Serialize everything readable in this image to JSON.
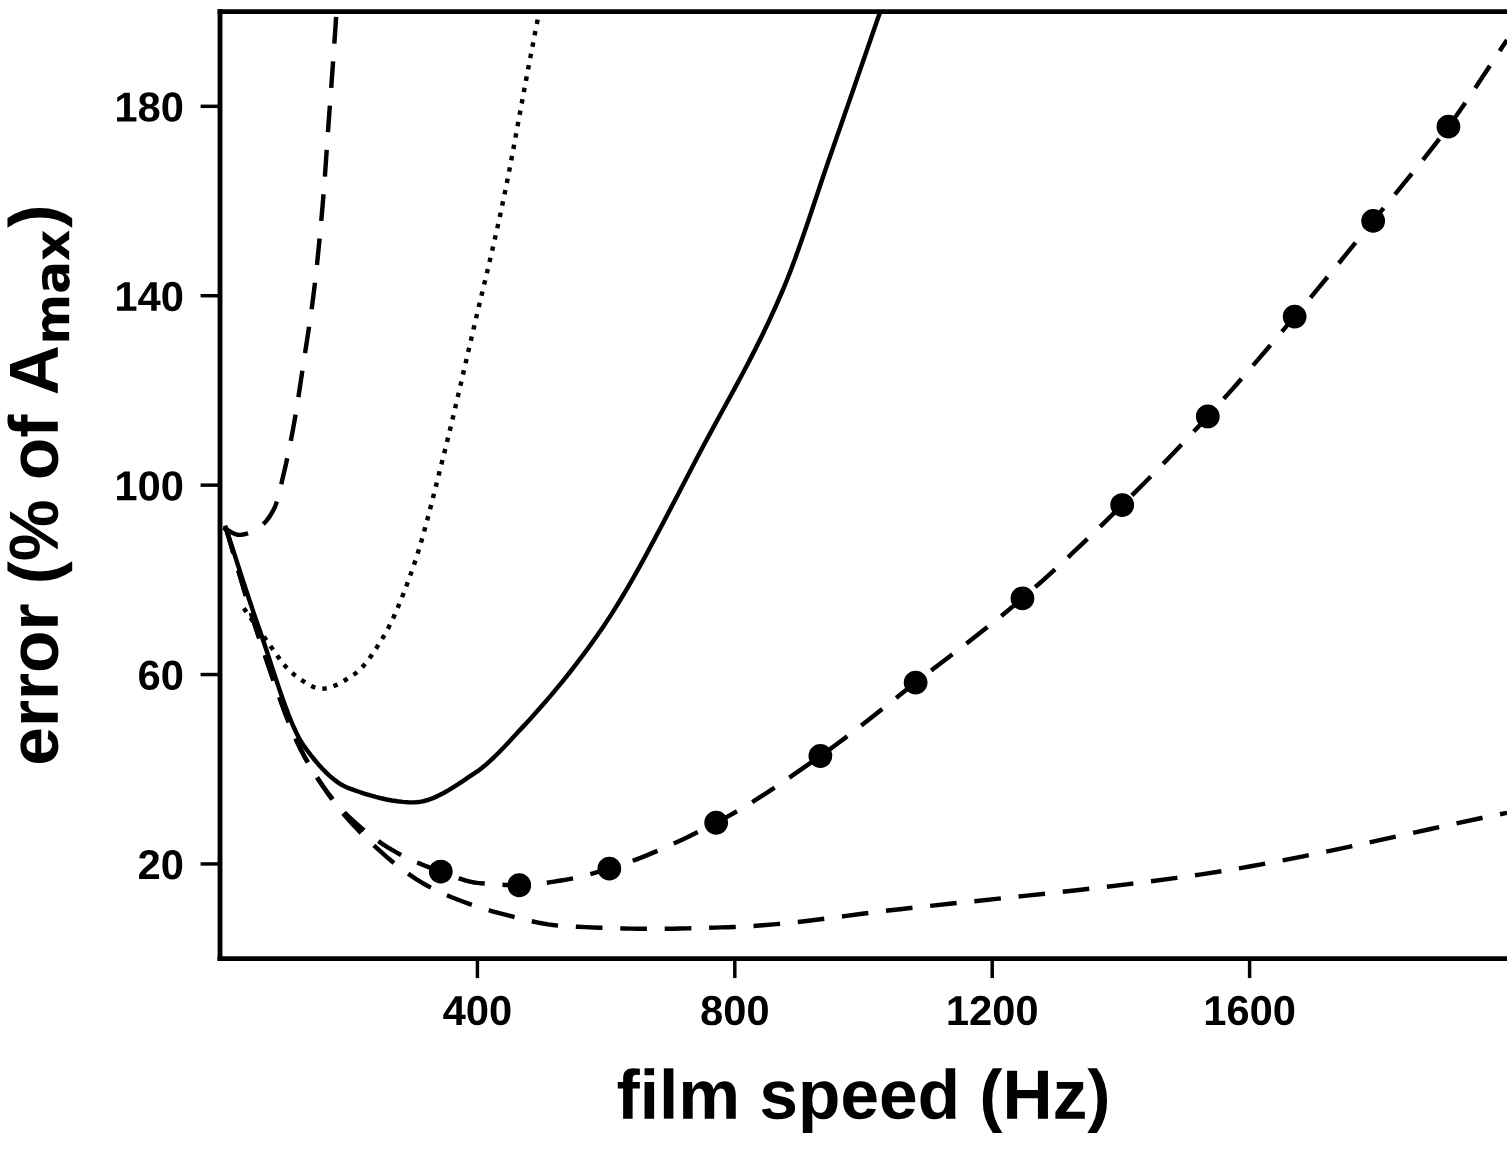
{
  "chart_data": {
    "type": "line",
    "xlabel": "film speed (Hz)",
    "ylabel": "error (% of A$_{max}$)",
    "xlim": [
      0,
      2000
    ],
    "ylim": [
      0,
      200
    ],
    "xticks": [
      400,
      800,
      1200,
      1600
    ],
    "yticks": [
      20,
      60,
      100,
      140,
      180
    ],
    "grid": false,
    "legend": false,
    "series": [
      {
        "color": "#000000",
        "line_style": "dashed",
        "marker": "none",
        "x": [
          5,
          30,
          60,
          84,
          100,
          115,
          130,
          146,
          160,
          169,
          176,
          181
        ],
        "values": [
          91,
          89.5,
          91,
          95,
          103,
          113,
          126,
          141,
          160,
          177,
          190,
          200
        ]
      },
      {
        "color": "#000000",
        "line_style": "dotted",
        "marker": "none",
        "x": [
          37,
          68,
          115,
          158,
          208,
          254,
          301,
          347,
          394,
          440,
          479,
          496
        ],
        "values": [
          74,
          68,
          60,
          57,
          60,
          68,
          83,
          106,
          133,
          160,
          188,
          200
        ]
      },
      {
        "color": "#000000",
        "line_style": "solid",
        "marker": "none",
        "x": [
          9,
          60,
          130,
          200,
          301,
          394,
          471,
          595,
          750,
          874,
          952,
          1026
        ],
        "values": [
          91,
          70,
          45,
          36,
          33,
          39,
          49,
          70,
          108,
          141,
          171,
          200
        ]
      },
      {
        "color": "#000000",
        "line_style": "dashed",
        "marker": "none",
        "x": [
          9,
          60,
          130,
          200,
          280,
          343,
          400,
          465,
          530,
          605,
          771,
          933,
          1081,
          1247,
          1402,
          1535,
          1670,
          1792,
          1909,
          2000
        ],
        "values": [
          91,
          68,
          43,
          30,
          22,
          18.4,
          16,
          15.5,
          16.5,
          19,
          28.7,
          42.8,
          58.3,
          76.1,
          95.8,
          114.5,
          135.6,
          155.8,
          175.7,
          194
        ]
      },
      {
        "type": "scatter",
        "color": "#000000",
        "marker": "circle",
        "x": [
          343,
          465,
          605,
          771,
          933,
          1081,
          1247,
          1402,
          1535,
          1670,
          1792,
          1909
        ],
        "values": [
          18.4,
          15.5,
          19,
          28.7,
          42.8,
          58.3,
          76.1,
          95.8,
          114.5,
          135.6,
          155.8,
          175.7
        ]
      },
      {
        "color": "#000000",
        "line_style": "dashed",
        "marker": "none",
        "x": [
          9,
          60,
          130,
          223,
          332,
          440,
          533,
          673,
          800,
          1060,
          1525,
          2000
        ],
        "values": [
          91,
          68,
          43,
          26,
          14.7,
          9.4,
          6.9,
          6.3,
          6.7,
          10.5,
          17.8,
          30.8
        ]
      }
    ]
  }
}
